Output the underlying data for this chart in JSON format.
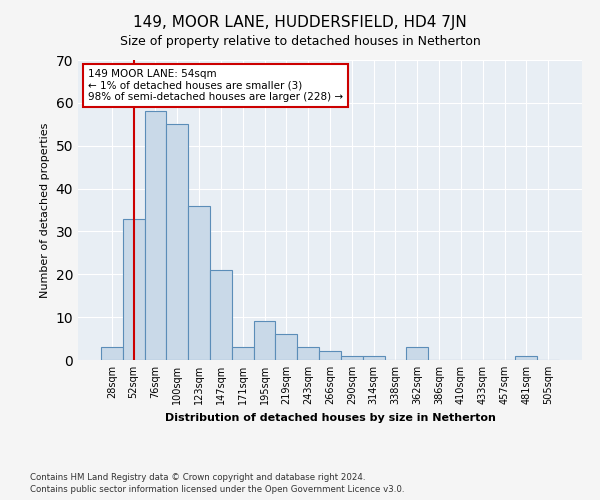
{
  "title": "149, MOOR LANE, HUDDERSFIELD, HD4 7JN",
  "subtitle": "Size of property relative to detached houses in Netherton",
  "xlabel": "Distribution of detached houses by size in Netherton",
  "ylabel": "Number of detached properties",
  "footer_line1": "Contains HM Land Registry data © Crown copyright and database right 2024.",
  "footer_line2": "Contains public sector information licensed under the Open Government Licence v3.0.",
  "bar_labels": [
    "28sqm",
    "52sqm",
    "76sqm",
    "100sqm",
    "123sqm",
    "147sqm",
    "171sqm",
    "195sqm",
    "219sqm",
    "243sqm",
    "266sqm",
    "290sqm",
    "314sqm",
    "338sqm",
    "362sqm",
    "386sqm",
    "410sqm",
    "433sqm",
    "457sqm",
    "481sqm",
    "505sqm"
  ],
  "bar_values": [
    3,
    33,
    58,
    55,
    36,
    21,
    3,
    9,
    6,
    3,
    2,
    1,
    1,
    0,
    3,
    0,
    0,
    0,
    0,
    1,
    0
  ],
  "bar_color": "#c9d9e8",
  "bar_edge_color": "#5b8db8",
  "bg_color": "#e8eef4",
  "grid_color": "#ffffff",
  "annotation_text": "149 MOOR LANE: 54sqm\n← 1% of detached houses are smaller (3)\n98% of semi-detached houses are larger (228) →",
  "annotation_box_color": "#ffffff",
  "annotation_box_edge": "#cc0000",
  "vline_x": 1,
  "vline_color": "#cc0000",
  "ylim": [
    0,
    70
  ],
  "yticks": [
    0,
    10,
    20,
    30,
    40,
    50,
    60,
    70
  ],
  "fig_bg_color": "#f5f5f5"
}
